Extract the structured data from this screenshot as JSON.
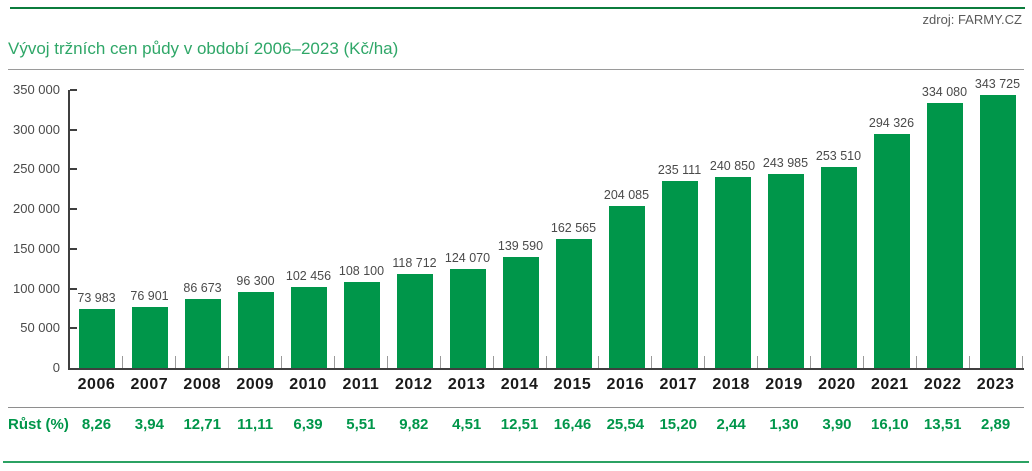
{
  "source": {
    "label": "zdroj: FARMY.CZ"
  },
  "chart_data": {
    "type": "bar",
    "title": "Vývoj tržních cen půdy v období 2006–2023 (Kč/ha)",
    "xlabel": "",
    "ylabel": "",
    "categories": [
      "2006",
      "2007",
      "2008",
      "2009",
      "2010",
      "2011",
      "2012",
      "2013",
      "2014",
      "2015",
      "2016",
      "2017",
      "2018",
      "2019",
      "2020",
      "2021",
      "2022",
      "2023"
    ],
    "values": [
      73983,
      76901,
      86673,
      96300,
      102456,
      108100,
      118712,
      124070,
      139590,
      162565,
      204085,
      235111,
      240850,
      243985,
      253510,
      294326,
      334080,
      343725
    ],
    "value_labels": [
      "73 983",
      "76 901",
      "86 673",
      "96 300",
      "102 456",
      "108 100",
      "118 712",
      "124 070",
      "139 590",
      "162 565",
      "204 085",
      "235 111",
      "240 850",
      "243 985",
      "253 510",
      "294 326",
      "334 080",
      "343 725"
    ],
    "ylim": [
      0,
      350000
    ],
    "y_tick_values": [
      0,
      50000,
      100000,
      150000,
      200000,
      250000,
      300000,
      350000
    ],
    "y_ticks": [
      "0",
      "50 000",
      "100 000",
      "150 000",
      "200 000",
      "250 000",
      "300 000",
      "350 000"
    ],
    "grid": false,
    "legend": "none",
    "growth_row": {
      "label": "Růst (%)",
      "values": [
        "8,26",
        "3,94",
        "12,71",
        "11,11",
        "6,39",
        "5,51",
        "9,82",
        "4,51",
        "12,51",
        "16,46",
        "25,54",
        "15,20",
        "2,44",
        "1,30",
        "3,90",
        "16,10",
        "13,51",
        "2,89"
      ]
    }
  },
  "colors": {
    "bar": "#00964A",
    "title": "#2FA768",
    "top_rule": "#0B7C3C",
    "bottom_rule": "#2BA263",
    "divider": "#9A9A9A",
    "axis": "#3F3F3F",
    "tick": "#9A9A9A",
    "growth": "#00964A",
    "source_text": "#5A5A5A"
  }
}
